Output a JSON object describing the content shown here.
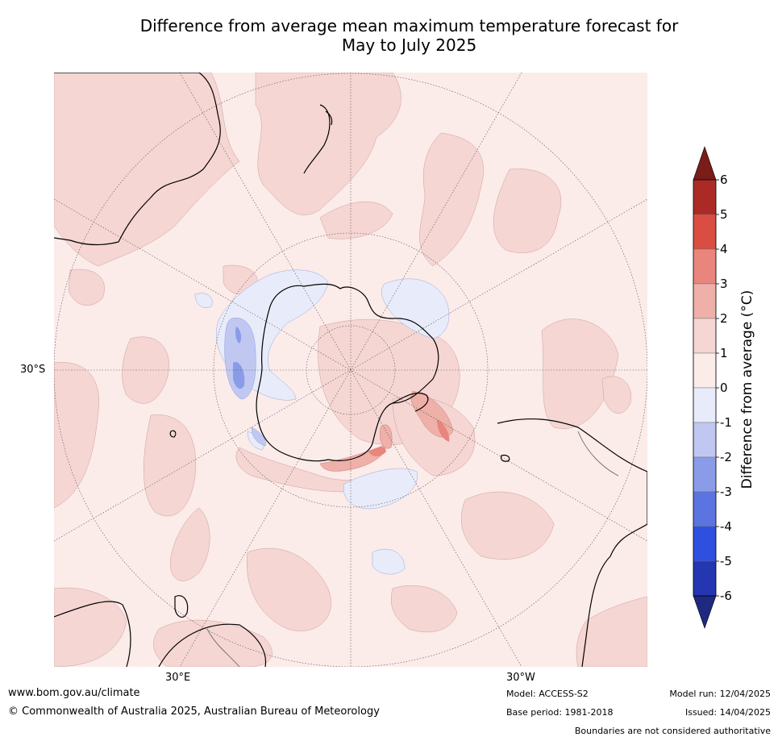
{
  "title": {
    "line1": "Difference from average mean maximum temperature forecast for",
    "line2": "May to July 2025"
  },
  "map": {
    "projection": "south-polar-stereographic",
    "latitude_label": "30°S",
    "longitude_labels": [
      "30°E",
      "30°W"
    ]
  },
  "colorbar": {
    "title": "Difference from average (°C)",
    "ticks": [
      "6",
      "5",
      "4",
      "3",
      "2",
      "1",
      "0",
      "-1",
      "-2",
      "-3",
      "-4",
      "-5",
      "-6"
    ],
    "bins": [
      {
        "range": "> 6",
        "color": "#7a1c18"
      },
      {
        "range": "5 to 6",
        "color": "#ab2a26"
      },
      {
        "range": "4 to 5",
        "color": "#da4d42"
      },
      {
        "range": "3 to 4",
        "color": "#e8857c"
      },
      {
        "range": "2 to 3",
        "color": "#eeb0a8"
      },
      {
        "range": "1 to 2",
        "color": "#f5d6d3"
      },
      {
        "range": "0 to 1",
        "color": "#fbebe9"
      },
      {
        "range": "-1 to 0",
        "color": "#e8ecfa"
      },
      {
        "range": "-2 to -1",
        "color": "#c0c8f2"
      },
      {
        "range": "-3 to -2",
        "color": "#8a9be8"
      },
      {
        "range": "-4 to -3",
        "color": "#5c74e0"
      },
      {
        "range": "-5 to -4",
        "color": "#2f4fdf"
      },
      {
        "range": "-6 to -5",
        "color": "#2536b3"
      },
      {
        "range": "< -6",
        "color": "#1d2a80"
      }
    ]
  },
  "footer": {
    "website": "www.bom.gov.au/climate",
    "copyright": "© Commonwealth of Australia 2025, Australian Bureau of Meteorology",
    "model": "Model: ACCESS-S2",
    "base_period": "Base period: 1981-2018",
    "model_run": "Model run: 12/04/2025",
    "issued": "Issued: 14/04/2025",
    "disclaimer": "Boundaries are not considered authoritative"
  }
}
